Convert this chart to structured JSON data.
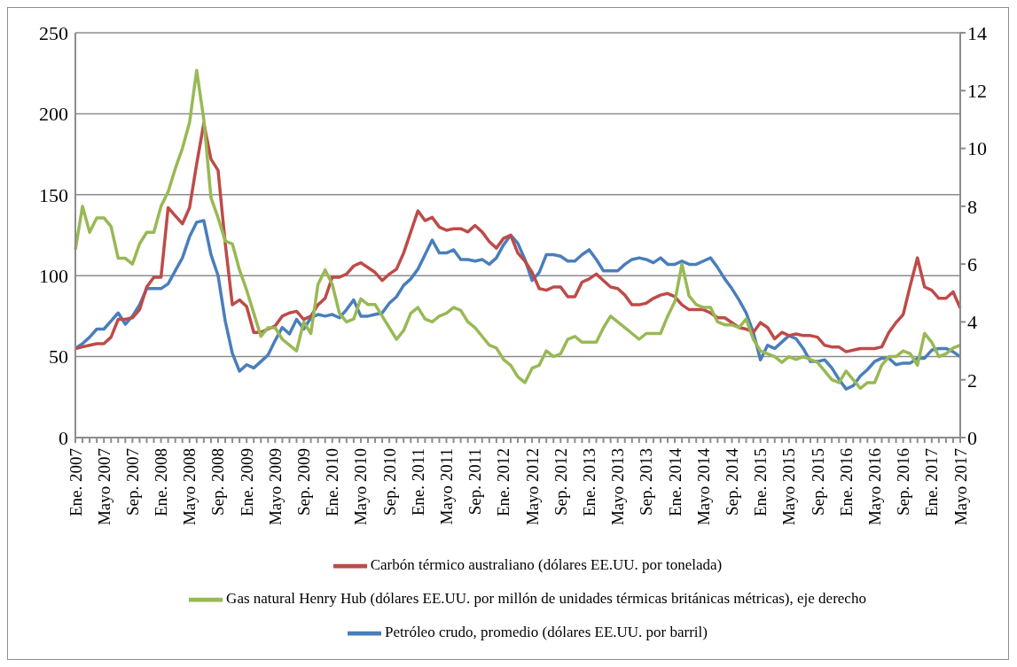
{
  "chart_data": {
    "type": "line",
    "categories": [
      "Ene. 2007",
      null,
      null,
      null,
      "Mayo 2007",
      null,
      null,
      null,
      "Sep. 2007",
      null,
      null,
      null,
      "Ene. 2008",
      null,
      null,
      null,
      "Mayo 2008",
      null,
      null,
      null,
      "Sep. 2008",
      null,
      null,
      null,
      "Ene. 2009",
      null,
      null,
      null,
      "Mayo 2009",
      null,
      null,
      null,
      "Sep. 2009",
      null,
      null,
      null,
      "Ene. 2010",
      null,
      null,
      null,
      "Mayo 2010",
      null,
      null,
      null,
      "Sep. 2010",
      null,
      null,
      null,
      "Ene. 2011",
      null,
      null,
      null,
      "Mayo 2011",
      null,
      null,
      null,
      "Sep. 2011",
      null,
      null,
      null,
      "Ene. 2012",
      null,
      null,
      null,
      "Mayo 2012",
      null,
      null,
      null,
      "Sep. 2012",
      null,
      null,
      null,
      "Ene. 2013",
      null,
      null,
      null,
      "Mayo 2013",
      null,
      null,
      null,
      "Sep. 2013",
      null,
      null,
      null,
      "Ene. 2014",
      null,
      null,
      null,
      "Mayo 2014",
      null,
      null,
      null,
      "Sep. 2014",
      null,
      null,
      null,
      "Ene. 2015",
      null,
      null,
      null,
      "Mayo 2015",
      null,
      null,
      null,
      "Sep. 2015",
      null,
      null,
      null,
      "Ene. 2016",
      null,
      null,
      null,
      "Mayo 2016",
      null,
      null,
      null,
      "Sep. 2016",
      null,
      null,
      null,
      "Ene. 2017",
      null,
      null,
      null,
      "Mayo 2017"
    ],
    "series": [
      {
        "name": "Petróleo crudo, promedio (dólares EE.UU. por barril)",
        "color": "#4a7ebb",
        "values": [
          55,
          58,
          62,
          67,
          67,
          72,
          77,
          70,
          75,
          82,
          92,
          92,
          92,
          95,
          103,
          111,
          124,
          133,
          134,
          113,
          100,
          72,
          52,
          41,
          45,
          43,
          47,
          51,
          60,
          68,
          64,
          73,
          67,
          74,
          76,
          75,
          76,
          74,
          79,
          85,
          75,
          75,
          76,
          77,
          83,
          87,
          94,
          98,
          104,
          113,
          122,
          114,
          114,
          116,
          110,
          110,
          109,
          110,
          107,
          111,
          119,
          125,
          120,
          110,
          97,
          102,
          113,
          113,
          112,
          109,
          109,
          113,
          116,
          110,
          103,
          103,
          103,
          107,
          110,
          111,
          110,
          108,
          111,
          107,
          107,
          109,
          107,
          107,
          109,
          111,
          105,
          98,
          92,
          85,
          77,
          65,
          48,
          57,
          55,
          59,
          63,
          61,
          55,
          47,
          47,
          48,
          43,
          36,
          30,
          32,
          38,
          42,
          47,
          49,
          49,
          45,
          46,
          46,
          49,
          49,
          54,
          55,
          55,
          53,
          50
        ]
      },
      {
        "name": "Carbón térmico australiano (dólares EE.UU. por tonelada)",
        "color": "#be4b48",
        "values": [
          55,
          56,
          57,
          58,
          58,
          62,
          73,
          73,
          74,
          79,
          93,
          99,
          99,
          142,
          137,
          132,
          142,
          169,
          194,
          172,
          165,
          120,
          82,
          85,
          81,
          65,
          65,
          67,
          69,
          75,
          77,
          78,
          73,
          75,
          82,
          86,
          99,
          99,
          101,
          106,
          108,
          105,
          102,
          97,
          101,
          104,
          114,
          127,
          140,
          134,
          136,
          130,
          128,
          129,
          129,
          127,
          131,
          127,
          121,
          117,
          123,
          125,
          114,
          109,
          102,
          92,
          91,
          93,
          93,
          87,
          87,
          96,
          98,
          101,
          97,
          93,
          92,
          88,
          82,
          82,
          83,
          86,
          88,
          89,
          87,
          82,
          79,
          79,
          79,
          77,
          74,
          74,
          71,
          68,
          67,
          65,
          71,
          68,
          61,
          65,
          63,
          64,
          63,
          63,
          62,
          57,
          56,
          56,
          53,
          54,
          55,
          55,
          55,
          56,
          65,
          71,
          76,
          94,
          111,
          93,
          91,
          86,
          86,
          90,
          80
        ]
      },
      {
        "name": "Gas natural Henry Hub (dólares EE.UU. por millón de unidades térmicas británicas métricas), eje derecho",
        "color": "#98b954",
        "axis": "y2",
        "values": [
          6.5,
          8.0,
          7.1,
          7.6,
          7.6,
          7.3,
          6.2,
          6.2,
          6.0,
          6.7,
          7.1,
          7.1,
          8.0,
          8.5,
          9.3,
          10.0,
          10.9,
          12.7,
          11.0,
          8.3,
          7.6,
          6.8,
          6.7,
          5.8,
          5.1,
          4.3,
          3.5,
          3.8,
          3.8,
          3.4,
          3.2,
          3.0,
          4.0,
          3.6,
          5.3,
          5.8,
          5.3,
          4.3,
          4.0,
          4.1,
          4.8,
          4.6,
          4.6,
          4.2,
          3.8,
          3.4,
          3.7,
          4.3,
          4.5,
          4.1,
          4.0,
          4.2,
          4.3,
          4.5,
          4.4,
          4.0,
          3.8,
          3.5,
          3.2,
          3.1,
          2.7,
          2.5,
          2.1,
          1.9,
          2.4,
          2.5,
          3.0,
          2.8,
          2.9,
          3.4,
          3.5,
          3.3,
          3.3,
          3.3,
          3.8,
          4.2,
          4.0,
          3.8,
          3.6,
          3.4,
          3.6,
          3.6,
          3.6,
          4.2,
          4.7,
          6.0,
          4.9,
          4.6,
          4.5,
          4.5,
          4.0,
          3.9,
          3.9,
          3.8,
          4.1,
          3.4,
          3.0,
          2.9,
          2.8,
          2.6,
          2.8,
          2.7,
          2.8,
          2.7,
          2.6,
          2.3,
          2.0,
          1.9,
          2.3,
          2.0,
          1.7,
          1.9,
          1.9,
          2.5,
          2.8,
          2.8,
          3.0,
          2.9,
          2.5,
          3.6,
          3.3,
          2.8,
          2.9,
          3.1,
          3.2
        ]
      }
    ],
    "ylim": [
      0,
      250
    ],
    "yticks": [
      0,
      50,
      100,
      150,
      200,
      250
    ],
    "y2lim": [
      0,
      14
    ],
    "y2ticks": [
      0,
      2,
      4,
      6,
      8,
      10,
      12,
      14
    ],
    "grid": "y",
    "legend": "bottom",
    "marker": "none",
    "line_style": "solid"
  }
}
